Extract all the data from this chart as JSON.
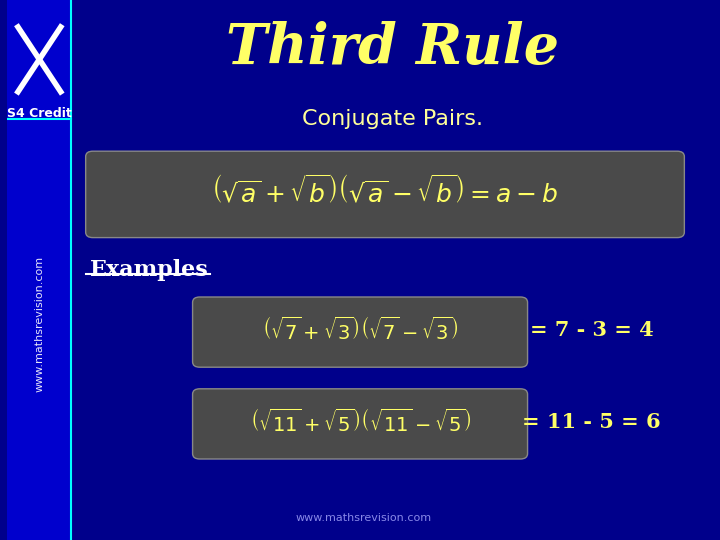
{
  "bg_color": "#00008B",
  "sidebar_color": "#0000CD",
  "title_text": "Third Rule",
  "title_color": "#FFFF66",
  "subtitle_text": "Conjugate Pairs.",
  "subtitle_color": "#FFFF99",
  "s4_credit_text": "S4 Credit",
  "s4_credit_color": "#FFFFFF",
  "sidebar_watermark_text": "www.mathsrevision.com",
  "formula_color": "#FFFF66",
  "examples_text": "Examples",
  "examples_color": "#FFFFFF",
  "result1_text": "= 7 - 3 = 4",
  "result2_text": "= 11 - 5 = 6",
  "result_color": "#FFFF66",
  "bottom_url": "www.mathsrevision.com",
  "bottom_url_color": "#AAAAFF"
}
